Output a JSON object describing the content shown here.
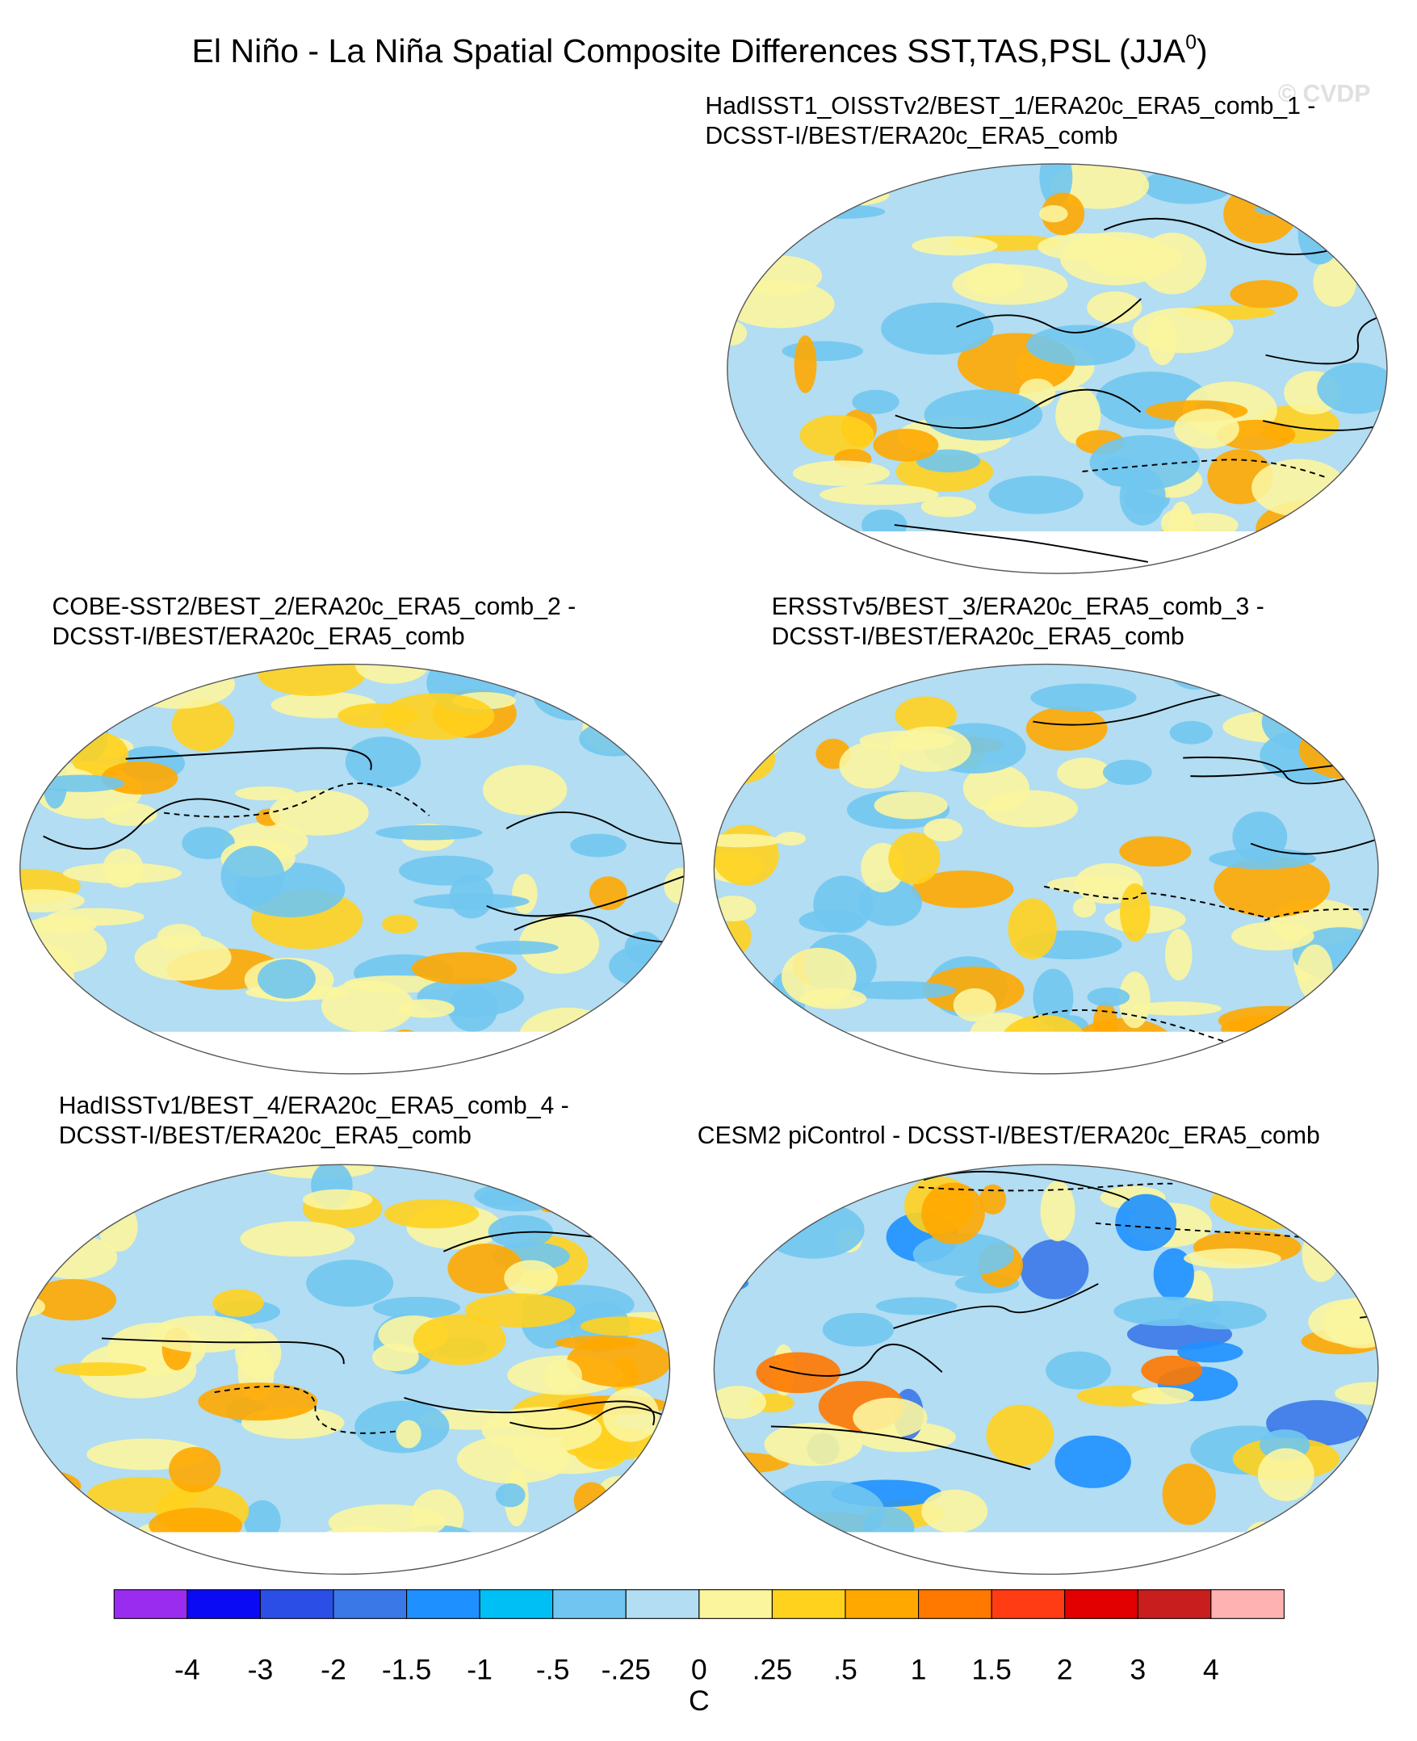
{
  "title": "El Niño - La Niña Spatial Composite Differences SST,TAS,PSL (JJA",
  "title_superscript": "0",
  "title_close": ")",
  "watermark": "© CVDP",
  "panels": [
    {
      "title_lines": [
        "HadISST1_OISSTv2/BEST_1/ERA20c_ERA5_comb_1 -",
        "DCSST-I/BEST/ERA20c_ERA5_comb"
      ]
    },
    {
      "title_lines": [
        "COBE-SST2/BEST_2/ERA20c_ERA5_comb_2 -",
        "DCSST-I/BEST/ERA20c_ERA5_comb"
      ]
    },
    {
      "title_lines": [
        "ERSSTv5/BEST_3/ERA20c_ERA5_comb_3 -",
        "DCSST-I/BEST/ERA20c_ERA5_comb"
      ]
    },
    {
      "title_lines": [
        "HadISSTv1/BEST_4/ERA20c_ERA5_comb_4 -",
        "DCSST-I/BEST/ERA20c_ERA5_comb"
      ]
    },
    {
      "title_lines": [
        "CESM2 piControl - DCSST-I/BEST/ERA20c_ERA5_comb"
      ]
    }
  ],
  "colorbar": {
    "colors": [
      "#9a2cf0",
      "#0a0af5",
      "#2a4ee6",
      "#3a78e8",
      "#1e90ff",
      "#00bff5",
      "#70c6f0",
      "#b2ddf2",
      "#fbf59e",
      "#ffd21e",
      "#ffa800",
      "#ff7800",
      "#ff3c14",
      "#e20000",
      "#c81e1e",
      "#ffb2b2"
    ],
    "labels": [
      "-4",
      "-3",
      "-2",
      "-1.5",
      "-1",
      "-.5",
      "-.25",
      "0",
      ".25",
      ".5",
      "1",
      "1.5",
      "2",
      "3",
      "4"
    ],
    "unit": "C"
  }
}
